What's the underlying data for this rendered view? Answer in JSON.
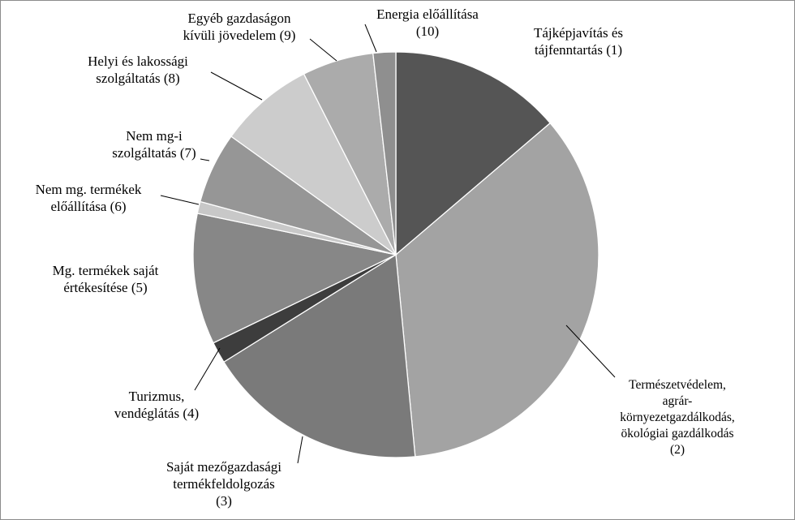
{
  "chart_data": {
    "type": "pie",
    "categories": [
      "Tájképjavítás és tájfenntartás (1)",
      "Természetvédelem, agrár-környezetgazdálkodás, ökológiai gazdálkodás (2)",
      "Saját mezőgazdasági termékfeldolgozás (3)",
      "Turizmus, vendéglátás (4)",
      "Mg. termékek saját értékesítése (5)",
      "Nem mg. termékek előállítása (6)",
      "Nem mg-i szolgáltatás (7)",
      "Helyi és lakossági szolgáltatás (8)",
      "Egyéb gazdaságon kívüli jövedelem (9)",
      "Energia előállítása (10)"
    ],
    "values": [
      14.5,
      36.6,
      18.6,
      1.8,
      11.0,
      1.0,
      6.0,
      8.0,
      6.0,
      1.9
    ],
    "colors": [
      "#555555",
      "#a3a3a3",
      "#7a7a7a",
      "#3d3d3d",
      "#878787",
      "#c8c8c8",
      "#969696",
      "#cccccc",
      "#ababab",
      "#8f8f8f"
    ],
    "labels": [
      [
        "Tájképjavítás és",
        "tájfenntartás (1)"
      ],
      [
        "Természetvédelem,",
        "agrár-",
        "környezetgazdálkodás,",
        "ökológiai gazdálkodás",
        "(2)"
      ],
      [
        "Saját mezőgazdasági",
        "termékfeldolgozás",
        "(3)"
      ],
      [
        "Turizmus,",
        "vendéglátás (4)"
      ],
      [
        "Mg. termékek  saját",
        "értékesítése (5)"
      ],
      [
        "Nem mg. termékek",
        "előállítása (6)"
      ],
      [
        "Nem mg-i",
        "szolgáltatás (7)"
      ],
      [
        "Helyi és lakossági",
        "szolgáltatás (8)"
      ],
      [
        "Egyéb gazdaságon",
        "kívüli jövedelem (9)"
      ],
      [
        "Energia előállítása",
        "(10)"
      ]
    ],
    "title": "",
    "legend": "none",
    "start_angle": "12 o'clock",
    "direction": "clockwise"
  }
}
